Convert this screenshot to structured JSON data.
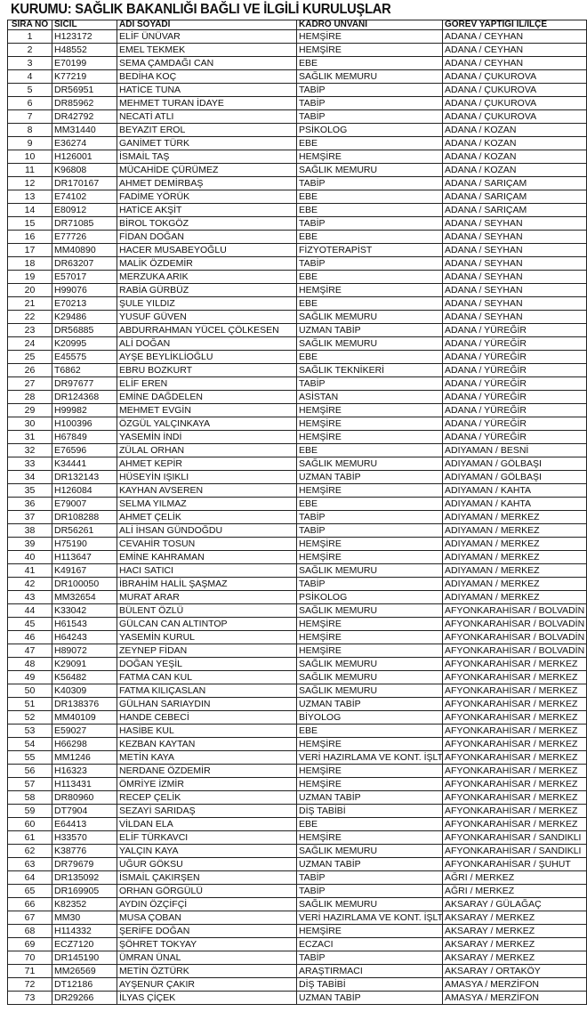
{
  "title": "KURUMU: SAĞLIK BAKANLIĞI BAĞLI VE İLGİLİ KURULUŞLAR",
  "columns": [
    "SIRA NO",
    "SİCİL",
    "ADI SOYADI",
    "KADRO UNVANI",
    "GÖREV YAPTIĞI İL/İLÇE"
  ],
  "rows": [
    [
      "1",
      "H123172",
      "ELİF ÜNÜVAR",
      "HEMŞİRE",
      "ADANA / CEYHAN"
    ],
    [
      "2",
      "H48552",
      "EMEL TEKMEK",
      "HEMŞİRE",
      "ADANA / CEYHAN"
    ],
    [
      "3",
      "E70199",
      "SEMA ÇAMDAĞI CAN",
      "EBE",
      "ADANA / CEYHAN"
    ],
    [
      "4",
      "K77219",
      "BEDİHA KOÇ",
      "SAĞLIK MEMURU",
      "ADANA / ÇUKUROVA"
    ],
    [
      "5",
      "DR56951",
      "HATİCE TUNA",
      "TABİP",
      "ADANA / ÇUKUROVA"
    ],
    [
      "6",
      "DR85962",
      "MEHMET TURAN İDAYE",
      "TABİP",
      "ADANA / ÇUKUROVA"
    ],
    [
      "7",
      "DR42792",
      "NECATİ ATLI",
      "TABİP",
      "ADANA / ÇUKUROVA"
    ],
    [
      "8",
      "MM31440",
      "BEYAZIT EROL",
      "PSİKOLOG",
      "ADANA / KOZAN"
    ],
    [
      "9",
      "E36274",
      "GANİMET TÜRK",
      "EBE",
      "ADANA / KOZAN"
    ],
    [
      "10",
      "H126001",
      "İSMAİL TAŞ",
      "HEMŞİRE",
      "ADANA / KOZAN"
    ],
    [
      "11",
      "K96808",
      "MÜCAHİDE ÇÜRÜMEZ",
      "SAĞLIK MEMURU",
      "ADANA / KOZAN"
    ],
    [
      "12",
      "DR170167",
      "AHMET DEMİRBAŞ",
      "TABİP",
      "ADANA / SARIÇAM"
    ],
    [
      "13",
      "E74102",
      "FADİME YÖRÜK",
      "EBE",
      "ADANA / SARIÇAM"
    ],
    [
      "14",
      "E80912",
      "HATİCE AKŞİT",
      "EBE",
      "ADANA / SARIÇAM"
    ],
    [
      "15",
      "DR71085",
      "BİROL TOKGÖZ",
      "TABİP",
      "ADANA / SEYHAN"
    ],
    [
      "16",
      "E77726",
      "FİDAN DOĞAN",
      "EBE",
      "ADANA / SEYHAN"
    ],
    [
      "17",
      "MM40890",
      "HACER MUSABEYOĞLU",
      "FİZYOTERAPİST",
      "ADANA / SEYHAN"
    ],
    [
      "18",
      "DR63207",
      "MALİK ÖZDEMİR",
      "TABİP",
      "ADANA / SEYHAN"
    ],
    [
      "19",
      "E57017",
      "MERZUKA ARIK",
      "EBE",
      "ADANA / SEYHAN"
    ],
    [
      "20",
      "H99076",
      "RABİA GÜRBÜZ",
      "HEMŞİRE",
      "ADANA / SEYHAN"
    ],
    [
      "21",
      "E70213",
      "ŞULE YILDIZ",
      "EBE",
      "ADANA / SEYHAN"
    ],
    [
      "22",
      "K29486",
      "YUSUF GÜVEN",
      "SAĞLIK MEMURU",
      "ADANA / SEYHAN"
    ],
    [
      "23",
      "DR56885",
      "ABDURRAHMAN YÜCEL ÇÖLKESEN",
      "UZMAN TABİP",
      "ADANA / YÜREĞİR"
    ],
    [
      "24",
      "K20995",
      "ALİ DOĞAN",
      "SAĞLIK MEMURU",
      "ADANA / YÜREĞİR"
    ],
    [
      "25",
      "E45575",
      "AYŞE BEYLİKLİOĞLU",
      "EBE",
      "ADANA / YÜREĞİR"
    ],
    [
      "26",
      "T6862",
      "EBRU BOZKURT",
      "SAĞLIK TEKNİKERİ",
      "ADANA / YÜREĞİR"
    ],
    [
      "27",
      "DR97677",
      "ELİF EREN",
      "TABİP",
      "ADANA / YÜREĞİR"
    ],
    [
      "28",
      "DR124368",
      "EMİNE DAĞDELEN",
      "ASİSTAN",
      "ADANA / YÜREĞİR"
    ],
    [
      "29",
      "H99982",
      "MEHMET EVGİN",
      "HEMŞİRE",
      "ADANA / YÜREĞİR"
    ],
    [
      "30",
      "H100396",
      "ÖZGÜL YALÇINKAYA",
      "HEMŞİRE",
      "ADANA / YÜREĞİR"
    ],
    [
      "31",
      "H67849",
      "YASEMİN İNDİ",
      "HEMŞİRE",
      "ADANA / YÜREĞİR"
    ],
    [
      "32",
      "E76596",
      "ZÜLAL ORHAN",
      "EBE",
      "ADIYAMAN / BESNİ"
    ],
    [
      "33",
      "K34441",
      "AHMET KEPİR",
      "SAĞLIK MEMURU",
      "ADIYAMAN / GÖLBAŞI"
    ],
    [
      "34",
      "DR132143",
      "HÜSEYİN IŞIKLI",
      "UZMAN TABİP",
      "ADIYAMAN / GÖLBAŞI"
    ],
    [
      "35",
      "H126084",
      "KAYHAN AVSEREN",
      "HEMŞİRE",
      "ADIYAMAN / KAHTA"
    ],
    [
      "36",
      "E79007",
      "SELMA YILMAZ",
      "EBE",
      "ADIYAMAN / KAHTA"
    ],
    [
      "37",
      "DR108288",
      "AHMET ÇELİK",
      "TABİP",
      "ADIYAMAN / MERKEZ"
    ],
    [
      "38",
      "DR56261",
      "ALİ İHSAN GÜNDOĞDU",
      "TABİP",
      "ADIYAMAN / MERKEZ"
    ],
    [
      "39",
      "H75190",
      "CEVAHİR TOSUN",
      "HEMŞİRE",
      "ADIYAMAN / MERKEZ"
    ],
    [
      "40",
      "H113647",
      "EMİNE KAHRAMAN",
      "HEMŞİRE",
      "ADIYAMAN / MERKEZ"
    ],
    [
      "41",
      "K49167",
      "HACI SATICI",
      "SAĞLIK MEMURU",
      "ADIYAMAN / MERKEZ"
    ],
    [
      "42",
      "DR100050",
      "İBRAHİM HALİL ŞAŞMAZ",
      "TABİP",
      "ADIYAMAN / MERKEZ"
    ],
    [
      "43",
      "MM32654",
      "MURAT ARAR",
      "PSİKOLOG",
      "ADIYAMAN / MERKEZ"
    ],
    [
      "44",
      "K33042",
      "BÜLENT ÖZLÜ",
      "SAĞLIK MEMURU",
      "AFYONKARAHİSAR / BOLVADİN"
    ],
    [
      "45",
      "H61543",
      "GÜLCAN CAN ALTINTOP",
      "HEMŞİRE",
      "AFYONKARAHİSAR / BOLVADİN"
    ],
    [
      "46",
      "H64243",
      "YASEMİN KURUL",
      "HEMŞİRE",
      "AFYONKARAHİSAR / BOLVADİN"
    ],
    [
      "47",
      "H89072",
      "ZEYNEP FİDAN",
      "HEMŞİRE",
      "AFYONKARAHİSAR / BOLVADİN"
    ],
    [
      "48",
      "K29091",
      "DOĞAN YEŞİL",
      "SAĞLIK MEMURU",
      "AFYONKARAHİSAR / MERKEZ"
    ],
    [
      "49",
      "K56482",
      "FATMA CAN KUL",
      "SAĞLIK MEMURU",
      "AFYONKARAHİSAR / MERKEZ"
    ],
    [
      "50",
      "K40309",
      "FATMA KILIÇASLAN",
      "SAĞLIK MEMURU",
      "AFYONKARAHİSAR / MERKEZ"
    ],
    [
      "51",
      "DR138376",
      "GÜLHAN SARIAYDIN",
      "UZMAN TABİP",
      "AFYONKARAHİSAR / MERKEZ"
    ],
    [
      "52",
      "MM40109",
      "HANDE CEBECİ",
      "BİYOLOG",
      "AFYONKARAHİSAR / MERKEZ"
    ],
    [
      "53",
      "E59027",
      "HASİBE KUL",
      "EBE",
      "AFYONKARAHİSAR / MERKEZ"
    ],
    [
      "54",
      "H66298",
      "KEZBAN KAYTAN",
      "HEMŞİRE",
      "AFYONKARAHİSAR / MERKEZ"
    ],
    [
      "55",
      "MM1246",
      "METİN KAYA",
      "VERİ HAZIRLAMA VE KONT. İŞLT.",
      "AFYONKARAHİSAR / MERKEZ"
    ],
    [
      "56",
      "H16323",
      "NERDANE ÖZDEMİR",
      "HEMŞİRE",
      "AFYONKARAHİSAR / MERKEZ"
    ],
    [
      "57",
      "H113431",
      "ÖMRİYE İZMİR",
      "HEMŞİRE",
      "AFYONKARAHİSAR / MERKEZ"
    ],
    [
      "58",
      "DR80960",
      "RECEP ÇELİK",
      "UZMAN TABİP",
      "AFYONKARAHİSAR / MERKEZ"
    ],
    [
      "59",
      "DT7904",
      "SEZAYİ SARIDAŞ",
      "DİŞ TABİBİ",
      "AFYONKARAHİSAR / MERKEZ"
    ],
    [
      "60",
      "E64413",
      "VİLDAN ELA",
      "EBE",
      "AFYONKARAHİSAR / MERKEZ"
    ],
    [
      "61",
      "H33570",
      "ELİF TÜRKAVCI",
      "HEMŞİRE",
      "AFYONKARAHİSAR / SANDIKLI"
    ],
    [
      "62",
      "K38776",
      "YALÇIN KAYA",
      "SAĞLIK MEMURU",
      "AFYONKARAHİSAR / SANDIKLI"
    ],
    [
      "63",
      "DR79679",
      "UĞUR GÖKSU",
      "UZMAN TABİP",
      "AFYONKARAHİSAR / ŞUHUT"
    ],
    [
      "64",
      "DR135092",
      "İSMAİL ÇAKIRŞEN",
      "TABİP",
      "AĞRI / MERKEZ"
    ],
    [
      "65",
      "DR169905",
      "ORHAN GÖRGÜLÜ",
      "TABİP",
      "AĞRI / MERKEZ"
    ],
    [
      "66",
      "K82352",
      "AYDIN ÖZÇİFÇİ",
      "SAĞLIK MEMURU",
      "AKSARAY / GÜLAĞAÇ"
    ],
    [
      "67",
      "MM30",
      "MUSA ÇOBAN",
      "VERİ HAZIRLAMA VE KONT. İŞLT.",
      "AKSARAY / MERKEZ"
    ],
    [
      "68",
      "H114332",
      "ŞERİFE DOĞAN",
      "HEMŞİRE",
      "AKSARAY / MERKEZ"
    ],
    [
      "69",
      "ECZ7120",
      "ŞÖHRET TOKYAY",
      "ECZACI",
      "AKSARAY / MERKEZ"
    ],
    [
      "70",
      "DR145190",
      "ÜMRAN ÜNAL",
      "TABİP",
      "AKSARAY / MERKEZ"
    ],
    [
      "71",
      "MM26569",
      "METİN ÖZTÜRK",
      "ARAŞTIRMACI",
      "AKSARAY / ORTAKÖY"
    ],
    [
      "72",
      "DT12186",
      "AYŞENUR ÇAKIR",
      "DİŞ TABİBİ",
      "AMASYA / MERZİFON"
    ],
    [
      "73",
      "DR29266",
      "İLYAS ÇİÇEK",
      "UZMAN TABİP",
      "AMASYA / MERZİFON"
    ]
  ]
}
